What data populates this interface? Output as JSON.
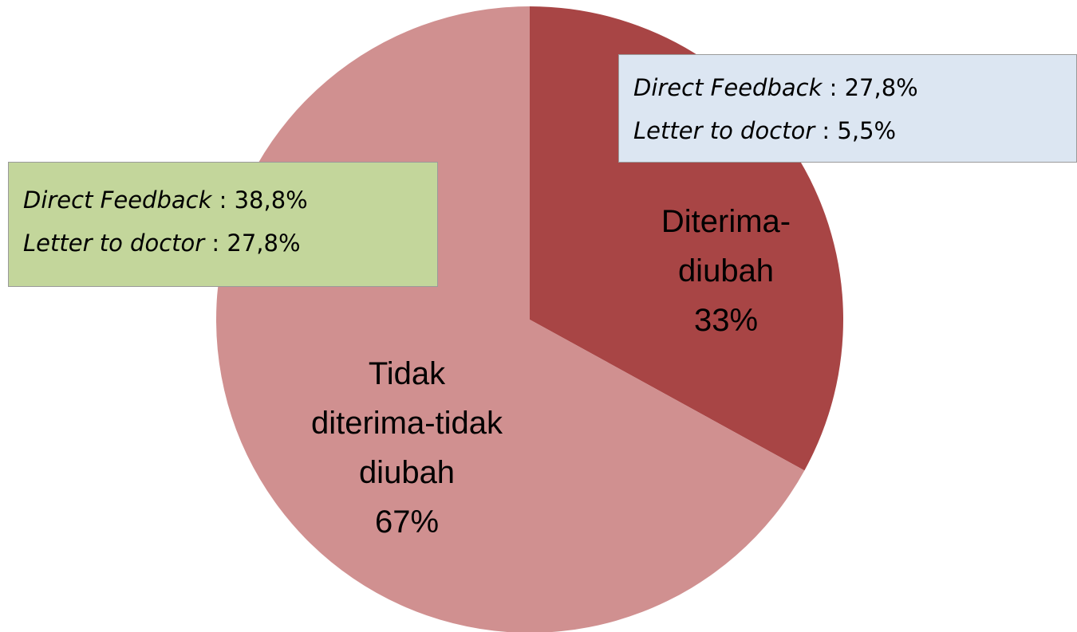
{
  "chart_data": {
    "type": "pie",
    "categories": [
      "Diterima-diubah",
      "Tidak diterima-tidak diubah"
    ],
    "values": [
      33,
      67
    ],
    "value_labels": [
      "33%",
      "67%"
    ],
    "colors": [
      "#a84545",
      "#d09090"
    ],
    "annotations": [
      {
        "color": "#dce6f2",
        "separator": ":",
        "items": [
          {
            "label": "Direct Feedback",
            "value": "27,8%"
          },
          {
            "label": "Letter to doctor",
            "value": "5,5%"
          }
        ]
      },
      {
        "color": "#c3d69b",
        "separator": ":",
        "items": [
          {
            "label": "Direct Feedback",
            "value": "38,8%"
          },
          {
            "label": "Letter to doctor",
            "value": "27,8%"
          }
        ]
      }
    ]
  }
}
